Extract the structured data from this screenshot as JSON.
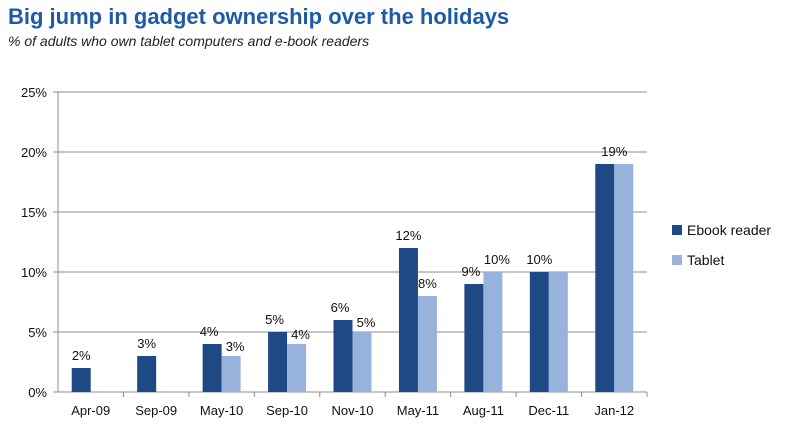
{
  "header": {
    "title": "Big jump in gadget ownership over the holidays",
    "subtitle": "% of adults who own tablet computers and e-book readers"
  },
  "chart_data": {
    "type": "bar",
    "title": "Big jump in gadget ownership over the holidays",
    "subtitle": "% of adults who own tablet computers and e-book readers",
    "xlabel": "",
    "ylabel": "",
    "categories": [
      "Apr-09",
      "Sep-09",
      "May-10",
      "Sep-10",
      "Nov-10",
      "May-11",
      "Aug-11",
      "Dec-11",
      "Jan-12"
    ],
    "series": [
      {
        "name": "Ebook reader",
        "color": "#1f4985",
        "values": [
          2,
          3,
          4,
          5,
          6,
          12,
          9,
          10,
          19
        ],
        "labels": [
          "2%",
          "3%",
          "4%",
          "5%",
          "6%",
          "12%",
          "9%",
          "10%",
          ""
        ]
      },
      {
        "name": "Tablet",
        "color": "#97b3dc",
        "values": [
          null,
          null,
          3,
          4,
          5,
          8,
          10,
          10,
          19
        ],
        "labels": [
          "",
          "",
          "3%",
          "4%",
          "5%",
          "8%",
          "10%",
          "",
          ""
        ]
      }
    ],
    "shared_labels": [
      "",
      "",
      "",
      "",
      "",
      "",
      "",
      "",
      "19%"
    ],
    "ylim": [
      0,
      25
    ],
    "yticks": [
      0,
      5,
      10,
      15,
      20,
      25
    ],
    "ytick_labels": [
      "0%",
      "5%",
      "10%",
      "15%",
      "20%",
      "25%"
    ],
    "grid": true,
    "legend_position": "right"
  }
}
